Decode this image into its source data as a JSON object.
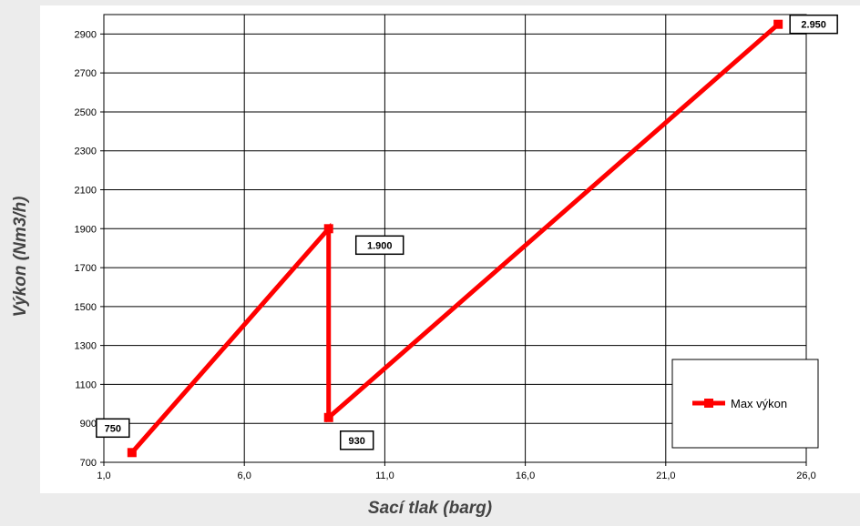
{
  "chart_data": {
    "type": "line",
    "xlabel": "Sací tlak (barg)",
    "ylabel": "Výkon (Nm3/h)",
    "xlim": [
      1.0,
      26.0
    ],
    "ylim": [
      700,
      3000
    ],
    "x_ticks": [
      1.0,
      6.0,
      11.0,
      16.0,
      21.0,
      26.0
    ],
    "x_tick_labels": [
      "1,0",
      "6,0",
      "11,0",
      "16,0",
      "21,0",
      "26,0"
    ],
    "y_ticks": [
      700,
      900,
      1100,
      1300,
      1500,
      1700,
      1900,
      2100,
      2300,
      2500,
      2700,
      2900
    ],
    "y_tick_labels": [
      "700",
      "900",
      "1100",
      "1300",
      "1500",
      "1700",
      "1900",
      "2100",
      "2300",
      "2500",
      "2700",
      "2900"
    ],
    "grid": true,
    "legend_position": "bottom-right",
    "series": [
      {
        "name": "Max výkon",
        "color": "#ff0000",
        "points": [
          {
            "x": 2.0,
            "y": 750
          },
          {
            "x": 9.0,
            "y": 1900
          },
          {
            "x": 9.0,
            "y": 930
          },
          {
            "x": 25.0,
            "y": 2950
          }
        ]
      }
    ],
    "data_labels": [
      {
        "text": "750",
        "x": 2.0,
        "y": 750
      },
      {
        "text": "1.900",
        "x": 9.0,
        "y": 1900
      },
      {
        "text": "930",
        "x": 9.0,
        "y": 930
      },
      {
        "text": "2.950",
        "x": 25.0,
        "y": 2950
      }
    ]
  }
}
